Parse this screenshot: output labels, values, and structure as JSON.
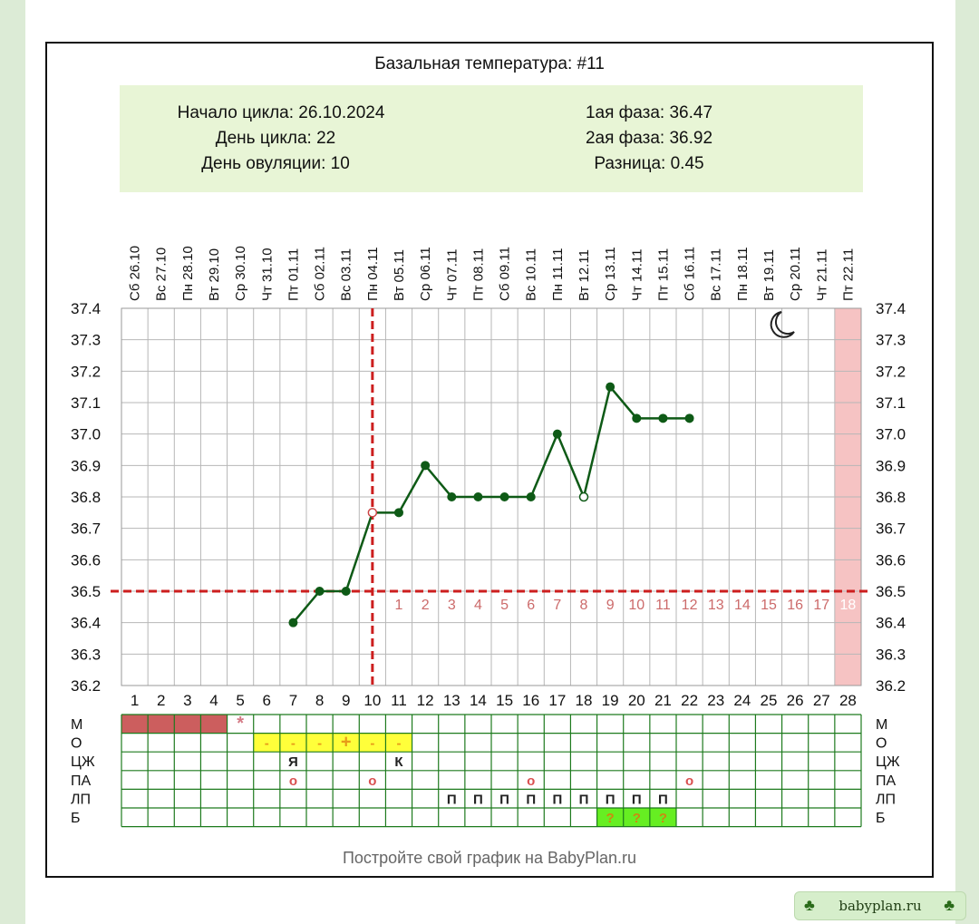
{
  "chart_data": {
    "type": "line",
    "title": "Базальная температура: #11",
    "info": {
      "cycle_start": "Начало цикла: 26.10.2024",
      "cycle_day": "День цикла: 22",
      "ovulation_day": "День овуляции: 10",
      "phase1": "1ая фаза: 36.47",
      "phase2": "2ая фаза: 36.92",
      "difference": "Разница: 0.45"
    },
    "dates": [
      "Сб 26.10",
      "Вс 27.10",
      "Пн 28.10",
      "Вт 29.10",
      "Ср 30.10",
      "Чт 31.10",
      "Пт 01.11",
      "Сб 02.11",
      "Вс 03.11",
      "Пн 04.11",
      "Вт 05.11",
      "Ср 06.11",
      "Чт 07.11",
      "Пт 08.11",
      "Сб 09.11",
      "Вс 10.11",
      "Пн 11.11",
      "Вт 12.11",
      "Ср 13.11",
      "Чт 14.11",
      "Пт 15.11",
      "Сб 16.11",
      "Вс 17.11",
      "Пн 18.11",
      "Вт 19.11",
      "Ср 20.11",
      "Чт 21.11",
      "Пт 22.11"
    ],
    "days": [
      "1",
      "2",
      "3",
      "4",
      "5",
      "6",
      "7",
      "8",
      "9",
      "10",
      "11",
      "12",
      "13",
      "14",
      "15",
      "16",
      "17",
      "18",
      "19",
      "20",
      "21",
      "22",
      "23",
      "24",
      "25",
      "26",
      "27",
      "28"
    ],
    "y_ticks": [
      "37.4",
      "37.3",
      "37.2",
      "37.1",
      "37.0",
      "36.9",
      "36.8",
      "36.7",
      "36.6",
      "36.5",
      "36.4",
      "36.3",
      "36.2"
    ],
    "ylim": [
      36.2,
      37.4
    ],
    "series": [
      {
        "points": [
          {
            "day": 7,
            "temp": 36.4,
            "marker": "filled"
          },
          {
            "day": 8,
            "temp": 36.5,
            "marker": "filled"
          },
          {
            "day": 9,
            "temp": 36.5,
            "marker": "filled"
          },
          {
            "day": 10,
            "temp": 36.75,
            "marker": "open"
          },
          {
            "day": 11,
            "temp": 36.75,
            "marker": "filled"
          },
          {
            "day": 12,
            "temp": 36.9,
            "marker": "filled"
          },
          {
            "day": 13,
            "temp": 36.8,
            "marker": "filled"
          },
          {
            "day": 14,
            "temp": 36.8,
            "marker": "filled"
          },
          {
            "day": 15,
            "temp": 36.8,
            "marker": "filled"
          },
          {
            "day": 16,
            "temp": 36.8,
            "marker": "filled"
          },
          {
            "day": 17,
            "temp": 37.0,
            "marker": "filled"
          },
          {
            "day": 18,
            "temp": 36.8,
            "marker": "open"
          },
          {
            "day": 19,
            "temp": 37.15,
            "marker": "filled"
          },
          {
            "day": 20,
            "temp": 37.05,
            "marker": "filled"
          },
          {
            "day": 21,
            "temp": 37.05,
            "marker": "filled"
          },
          {
            "day": 22,
            "temp": 37.05,
            "marker": "filled"
          }
        ]
      }
    ],
    "coverline_temp": 36.5,
    "ovulation_line_day": 10,
    "luteal_labels": {
      "start_day": 11,
      "labels": [
        "1",
        "2",
        "3",
        "4",
        "5",
        "6",
        "7",
        "8",
        "9",
        "10",
        "11",
        "12",
        "13",
        "14",
        "15",
        "16",
        "17",
        "18"
      ]
    },
    "highlight_day": 28,
    "moon_icon": "crescent-moon-icon",
    "grid": true,
    "table": {
      "row_labels": [
        "М",
        "О",
        "ЦЖ",
        "ПА",
        "ЛП",
        "Б"
      ],
      "cells": [
        {
          "row": 0,
          "day": 1,
          "fill": "#cc5e5e"
        },
        {
          "row": 0,
          "day": 2,
          "fill": "#cc5e5e"
        },
        {
          "row": 0,
          "day": 3,
          "fill": "#cc5e5e"
        },
        {
          "row": 0,
          "day": 4,
          "fill": "#cc5e5e"
        },
        {
          "row": 0,
          "day": 5,
          "text": "*",
          "color": "#d47a85"
        },
        {
          "row": 1,
          "day": 6,
          "fill": "#ffff3a",
          "text": "-",
          "color": "#e79a18"
        },
        {
          "row": 1,
          "day": 7,
          "fill": "#ffff3a",
          "text": "-",
          "color": "#e79a18"
        },
        {
          "row": 1,
          "day": 8,
          "fill": "#ffff3a",
          "text": "-",
          "color": "#e79a18"
        },
        {
          "row": 1,
          "day": 9,
          "fill": "#ffff3a",
          "text": "+",
          "color": "#e79a18"
        },
        {
          "row": 1,
          "day": 10,
          "fill": "#ffff3a",
          "text": "-",
          "color": "#e79a18"
        },
        {
          "row": 1,
          "day": 11,
          "fill": "#ffff3a",
          "text": "-",
          "color": "#e79a18"
        },
        {
          "row": 2,
          "day": 7,
          "text": "Я",
          "color": "#222222"
        },
        {
          "row": 2,
          "day": 11,
          "text": "К",
          "color": "#222222"
        },
        {
          "row": 3,
          "day": 7,
          "text": "o",
          "color": "#d95050"
        },
        {
          "row": 3,
          "day": 10,
          "text": "o",
          "color": "#d95050"
        },
        {
          "row": 3,
          "day": 16,
          "text": "o",
          "color": "#d95050"
        },
        {
          "row": 3,
          "day": 22,
          "text": "o",
          "color": "#d95050"
        },
        {
          "row": 4,
          "day": 13,
          "text": "П",
          "color": "#222222"
        },
        {
          "row": 4,
          "day": 14,
          "text": "П",
          "color": "#222222"
        },
        {
          "row": 4,
          "day": 15,
          "text": "П",
          "color": "#222222"
        },
        {
          "row": 4,
          "day": 16,
          "text": "П",
          "color": "#222222"
        },
        {
          "row": 4,
          "day": 17,
          "text": "П",
          "color": "#222222"
        },
        {
          "row": 4,
          "day": 18,
          "text": "П",
          "color": "#222222"
        },
        {
          "row": 4,
          "day": 19,
          "text": "П",
          "color": "#222222"
        },
        {
          "row": 4,
          "day": 20,
          "text": "П",
          "color": "#222222"
        },
        {
          "row": 4,
          "day": 21,
          "text": "П",
          "color": "#222222"
        },
        {
          "row": 5,
          "day": 19,
          "fill": "#66ee22",
          "text": "?",
          "color": "#cc8a10"
        },
        {
          "row": 5,
          "day": 20,
          "fill": "#66ee22",
          "text": "?",
          "color": "#cc8a10"
        },
        {
          "row": 5,
          "day": 21,
          "fill": "#66ee22",
          "text": "?",
          "color": "#cc8a10"
        }
      ]
    },
    "footer": "Постройте свой график на BabyPlan.ru",
    "colors": {
      "line": "#0e5a16",
      "grid": "#b7b7b7",
      "coverline": "#cc1e1e",
      "info_bg": "#e8f5d6",
      "luteal_label": "#cc6b6b",
      "highlight": "#f6c3c3",
      "table_border": "#1d7a1d"
    }
  },
  "badge": {
    "text": "babyplan.ru",
    "icon": "clover-icon"
  }
}
